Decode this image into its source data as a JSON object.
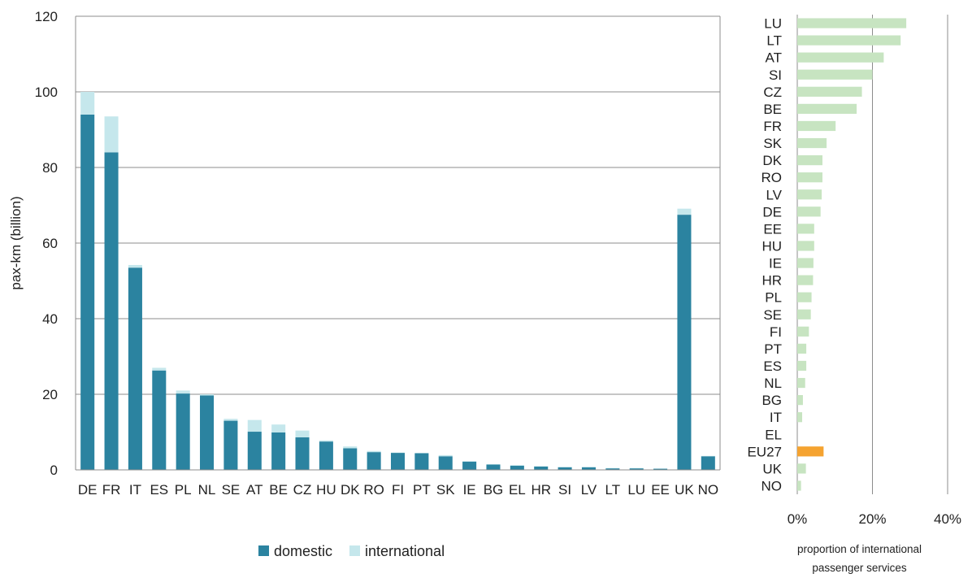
{
  "chart_data": [
    {
      "type": "bar",
      "stacked": true,
      "ylabel": "pax-km (billion)",
      "ylim": [
        0,
        120
      ],
      "yticks": [
        0,
        20,
        40,
        60,
        80,
        100,
        120
      ],
      "grid": true,
      "legend_position": "bottom",
      "categories": [
        "DE",
        "FR",
        "IT",
        "ES",
        "PL",
        "NL",
        "SE",
        "AT",
        "BE",
        "CZ",
        "HU",
        "DK",
        "RO",
        "FI",
        "PT",
        "SK",
        "IE",
        "BG",
        "EL",
        "HR",
        "SI",
        "LV",
        "LT",
        "LU",
        "EE",
        "UK",
        "NO"
      ],
      "series": [
        {
          "name": "domestic",
          "color": "#2b83a0",
          "values": [
            94,
            84,
            53.5,
            26.3,
            20.2,
            19.7,
            13,
            10.1,
            9.9,
            8.6,
            7.5,
            5.7,
            4.7,
            4.5,
            4.4,
            3.6,
            2.2,
            1.4,
            1.1,
            0.9,
            0.7,
            0.7,
            0.4,
            0.4,
            0.3,
            67.5,
            3.6
          ]
        },
        {
          "name": "international",
          "color": "#c5e7ec",
          "values": [
            6,
            9.5,
            0.7,
            0.7,
            0.8,
            0.3,
            0.5,
            3.1,
            2.1,
            1.8,
            0.3,
            0.5,
            0.3,
            0.1,
            0.1,
            0.3,
            0.1,
            0.1,
            0.2,
            0.1,
            0.1,
            0.1,
            0.1,
            0.1,
            0.1,
            1.6,
            0.1
          ]
        }
      ]
    },
    {
      "type": "bar",
      "orientation": "horizontal",
      "xlabel": "proportion  of international passenger services",
      "xlabel_lines": [
        "proportion  of international",
        "passenger services"
      ],
      "xlim": [
        0,
        40
      ],
      "xticks": [
        "0%",
        "20%",
        "40%"
      ],
      "grid": true,
      "categories": [
        "LU",
        "LT",
        "AT",
        "SI",
        "CZ",
        "BE",
        "FR",
        "SK",
        "DK",
        "RO",
        "LV",
        "DE",
        "EE",
        "HU",
        "IE",
        "HR",
        "PL",
        "SE",
        "FI",
        "PT",
        "ES",
        "NL",
        "BG",
        "IT",
        "EL",
        "EU27",
        "UK",
        "NO"
      ],
      "values": [
        29,
        27.5,
        23,
        20,
        17.2,
        15.8,
        10.2,
        7.8,
        6.7,
        6.7,
        6.5,
        6.2,
        4.5,
        4.5,
        4.3,
        4.2,
        3.8,
        3.6,
        3.1,
        2.4,
        2.4,
        2.1,
        1.5,
        1.3,
        0,
        7,
        2.3,
        1
      ],
      "colors": {
        "default": "#c7e4c1",
        "highlight": "#f5a330"
      },
      "highlight": "EU27"
    }
  ]
}
